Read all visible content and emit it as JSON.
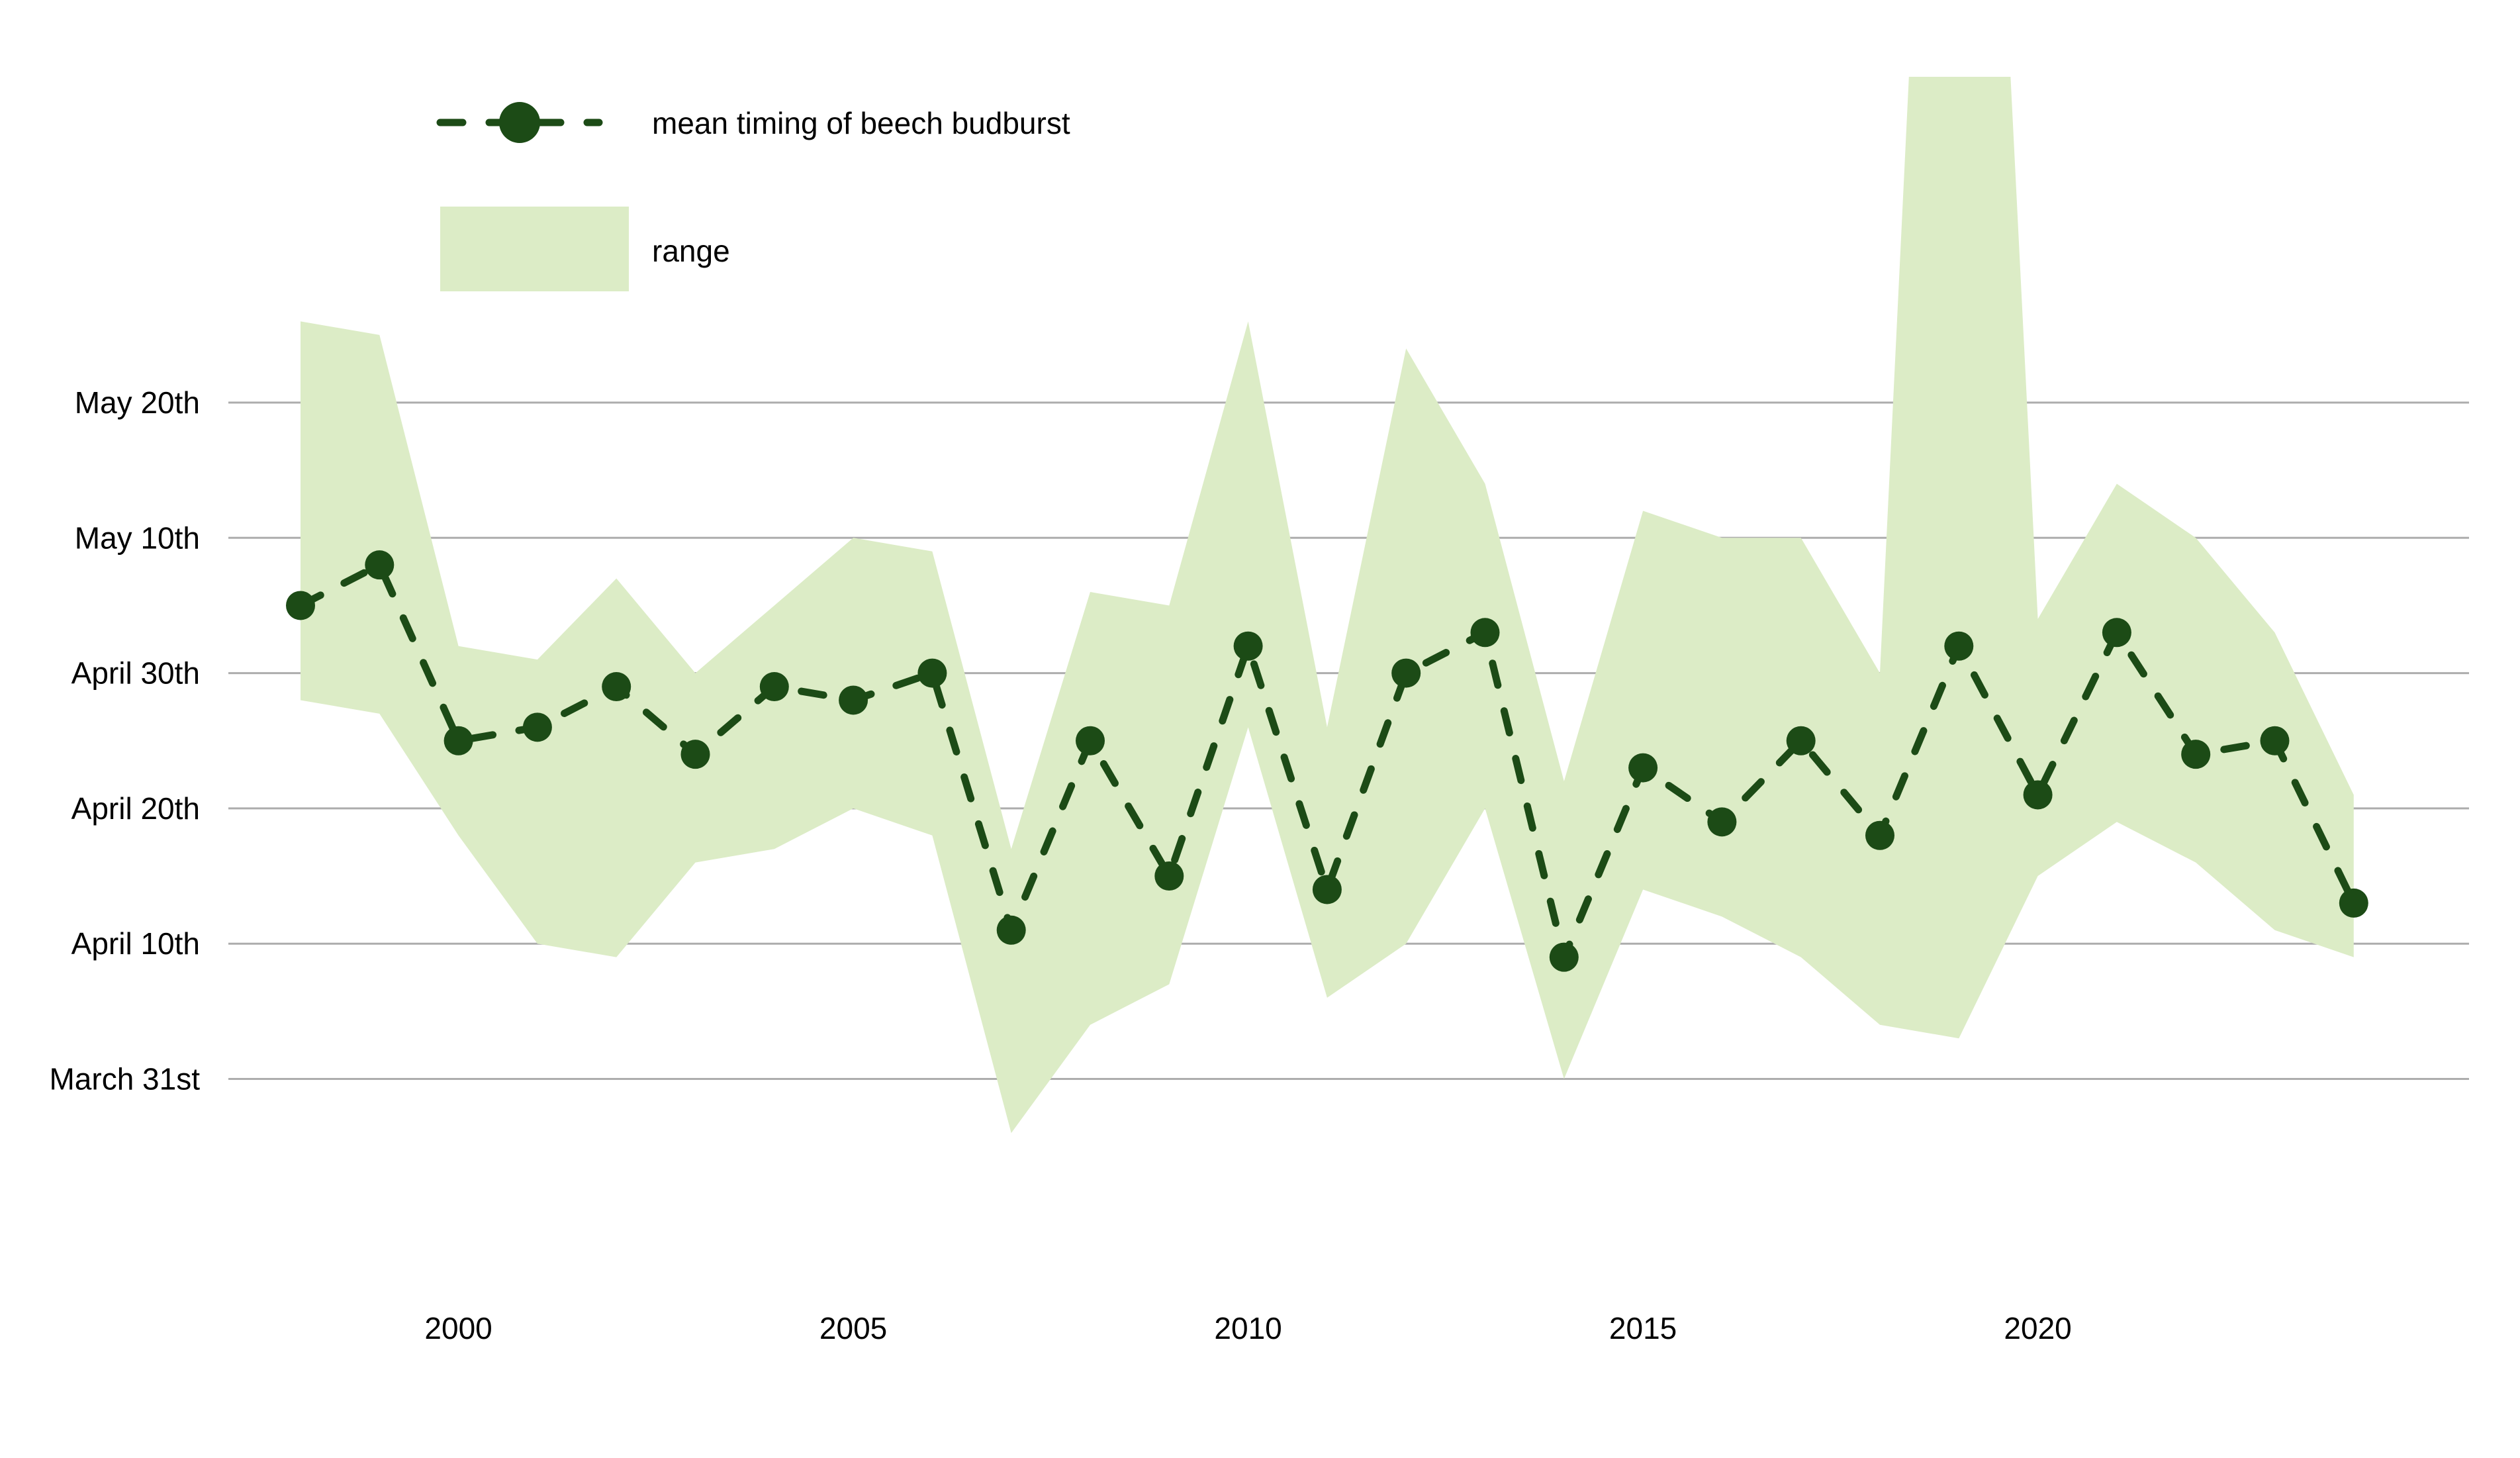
{
  "chart_data": {
    "type": "line",
    "title": "",
    "xlabel": "",
    "ylabel": "",
    "x": [
      1998,
      1999,
      2000,
      2001,
      2002,
      2003,
      2004,
      2005,
      2006,
      2007,
      2008,
      2009,
      2010,
      2011,
      2012,
      2013,
      2014,
      2015,
      2016,
      2017,
      2018,
      2019,
      2020,
      2021,
      2022,
      2023,
      2024
    ],
    "x_ticks": [
      "2000",
      "2005",
      "2010",
      "2015",
      "2020"
    ],
    "x_tick_years": [
      2000,
      2005,
      2010,
      2015,
      2020
    ],
    "y_ticks": [
      {
        "label": "May 20th",
        "day": 50
      },
      {
        "label": "May 10th",
        "day": 40
      },
      {
        "label": "April 30th",
        "day": 30
      },
      {
        "label": "April 20th",
        "day": 20
      },
      {
        "label": "April 10th",
        "day": 10
      },
      {
        "label": "March 31st",
        "day": 0
      }
    ],
    "day_scale_note": "day index 0 = March 31; 10 = April 10; 50 = May 20",
    "ylim_days": [
      -14,
      24.2
    ],
    "grid": true,
    "legend_position": "top-left",
    "series": [
      {
        "name": "mean timing of beech budburst",
        "style": "dashed line with circular markers",
        "values_day": [
          35,
          38,
          25,
          26,
          29,
          24,
          29,
          28,
          30,
          11,
          25,
          15,
          32,
          14,
          30,
          33,
          9,
          23,
          19,
          25,
          18,
          32,
          21,
          33,
          24,
          25,
          13
        ],
        "values_date": [
          "May 5",
          "May 8",
          "Apr 25",
          "Apr 26",
          "Apr 29",
          "Apr 24",
          "Apr 29",
          "Apr 28",
          "Apr 30",
          "Apr 11",
          "Apr 25",
          "Apr 15",
          "May 2",
          "Apr 14",
          "Apr 30",
          "May 3",
          "Apr 9",
          "Apr 23",
          "Apr 19",
          "Apr 25",
          "Apr 18",
          "May 2",
          "Apr 21",
          "May 3",
          "Apr 24",
          "Apr 25",
          "Apr 13"
        ]
      },
      {
        "name": "range",
        "style": "filled band",
        "upper_day": [
          56,
          55,
          32,
          31,
          37,
          30,
          35,
          40,
          39,
          17,
          36,
          35,
          56,
          26,
          54,
          44,
          22,
          42,
          40,
          40,
          30,
          150,
          34,
          44,
          40,
          33,
          21
        ],
        "lower_day": [
          28,
          27,
          18,
          10,
          9,
          16,
          17,
          20,
          18,
          -4,
          4,
          7,
          26,
          6,
          10,
          20,
          0,
          14,
          12,
          9,
          4,
          3,
          15,
          19,
          16,
          11,
          9
        ],
        "upper_date": [
          "May 26",
          "May 25",
          "May 2",
          "May 1",
          "May 7",
          "Apr 30",
          "May 5",
          "May 10",
          "May 9",
          "Apr 17",
          "May 6",
          "May 5",
          "May 26",
          "Apr 26",
          "May 24",
          "May 14",
          "Apr 22",
          "May 12",
          "May 10",
          "May 10",
          "Apr 30",
          "off-chart (clipped)",
          "May 4",
          "May 14",
          "May 10",
          "May 3",
          "Apr 21"
        ],
        "lower_date": [
          "Apr 28",
          "Apr 27",
          "Apr 18",
          "Apr 10",
          "Apr 9",
          "Apr 16",
          "Apr 17",
          "Apr 20",
          "Apr 18",
          "Mar 27",
          "Apr 4",
          "Apr 7",
          "Apr 26",
          "Apr 6",
          "Apr 10",
          "Apr 20",
          "Mar 31",
          "Apr 14",
          "Apr 12",
          "Apr 9",
          "Apr 4",
          "Apr 3",
          "Apr 15",
          "Apr 19",
          "Apr 16",
          "Apr 11",
          "Apr 9"
        ],
        "note": "2019 upper bound extends above the plot area and is clipped flat at the chart top"
      }
    ],
    "legend": {
      "mean_label": "mean timing of beech budburst",
      "range_label": "range"
    },
    "colors": {
      "line": "#1c4b16",
      "marker": "#1c4b16",
      "band": "#dcecc6",
      "grid": "#adadad",
      "text": "#000000",
      "background": "#ffffff"
    }
  }
}
